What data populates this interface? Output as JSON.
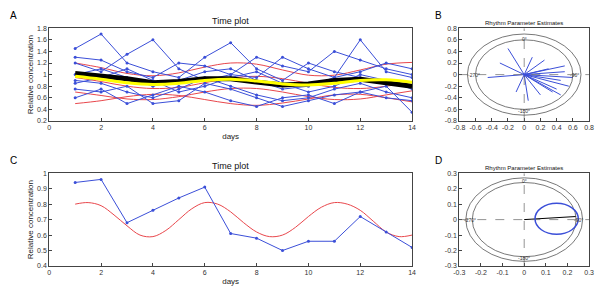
{
  "chart_data": [
    {
      "type": "line",
      "panel": "A",
      "title": "Time plot",
      "x_label": "days",
      "y_label": "Relative concentration",
      "xlim": [
        0,
        14
      ],
      "xticks": [
        0,
        2,
        4,
        6,
        8,
        10,
        12,
        14
      ],
      "ylim": [
        0.2,
        1.8
      ],
      "yticks": [
        0.2,
        0.4,
        0.6,
        0.8,
        1,
        1.2,
        1.4,
        1.6,
        1.8
      ],
      "grid": false,
      "x": [
        1,
        2,
        3,
        4,
        5,
        6,
        7,
        8,
        9,
        10,
        11,
        12,
        13,
        14
      ],
      "series": [
        {
          "color": "#e8474c",
          "line_style": "smooth",
          "values": [
            1.2,
            1.12,
            1.02,
            0.98,
            1.03,
            1.13,
            1.2,
            1.18,
            1.08,
            0.99,
            0.99,
            1.08,
            1.18,
            1.21
          ]
        },
        {
          "color": "#e8474c",
          "line_style": "smooth",
          "values": [
            0.7,
            0.64,
            0.58,
            0.57,
            0.62,
            0.7,
            0.76,
            0.76,
            0.7,
            0.62,
            0.57,
            0.58,
            0.65,
            0.72
          ]
        },
        {
          "color": "#e8474c",
          "line_style": "smooth",
          "values": [
            0.95,
            0.88,
            0.8,
            0.76,
            0.78,
            0.86,
            0.94,
            0.97,
            0.93,
            0.85,
            0.78,
            0.76,
            0.8,
            0.88
          ]
        },
        {
          "color": "#e8474c",
          "line_style": "smooth",
          "values": [
            0.5,
            0.55,
            0.62,
            0.66,
            0.64,
            0.57,
            0.5,
            0.47,
            0.51,
            0.58,
            0.65,
            0.66,
            0.6,
            0.53
          ]
        },
        {
          "color": "#3b4fd8",
          "marker": "dot",
          "values": [
            1.45,
            1.7,
            1.2,
            1.05,
            0.95,
            1.3,
            1.55,
            1.1,
            0.9,
            1.2,
            1.05,
            0.95,
            0.85,
            0.8
          ]
        },
        {
          "color": "#3b4fd8",
          "marker": "dot",
          "values": [
            0.6,
            0.75,
            0.5,
            0.65,
            0.8,
            0.7,
            0.55,
            0.45,
            0.6,
            0.65,
            0.5,
            0.7,
            0.6,
            0.55
          ]
        },
        {
          "color": "#3b4fd8",
          "marker": "dot",
          "values": [
            1.2,
            1.05,
            1.35,
            1.6,
            1.1,
            0.9,
            1.0,
            1.3,
            1.15,
            1.05,
            1.4,
            1.25,
            1.1,
            1.0
          ]
        },
        {
          "color": "#3b4fd8",
          "marker": "dot",
          "values": [
            0.9,
            0.85,
            0.7,
            0.6,
            0.75,
            0.95,
            0.8,
            0.65,
            0.55,
            0.6,
            0.75,
            0.85,
            0.7,
            0.6
          ]
        },
        {
          "color": "#3b4fd8",
          "marker": "dot",
          "values": [
            1.0,
            1.1,
            0.95,
            0.8,
            0.9,
            1.05,
            1.1,
            0.9,
            0.75,
            0.8,
            0.95,
            1.6,
            1.05,
            0.95
          ]
        },
        {
          "color": "#3b4fd8",
          "marker": "dot",
          "values": [
            0.75,
            0.7,
            0.8,
            0.5,
            0.55,
            0.85,
            0.75,
            0.6,
            0.45,
            0.55,
            0.65,
            0.7,
            0.8,
            0.35
          ]
        },
        {
          "color": "#3b4fd8",
          "marker": "dot",
          "values": [
            1.3,
            1.25,
            1.05,
            0.95,
            1.2,
            1.15,
            1.0,
            0.95,
            1.3,
            1.1,
            0.95,
            1.05,
            1.2,
            1.1
          ]
        },
        {
          "color": "#3b4fd8",
          "marker": "dot",
          "values": [
            0.85,
            0.95,
            1.1,
            0.9,
            0.7,
            0.8,
            0.95,
            1.05,
            0.85,
            0.7,
            0.8,
            1.0,
            0.9,
            0.75
          ]
        },
        {
          "color": "#000000",
          "line_style": "bold",
          "values": [
            1.02,
            0.98,
            0.93,
            0.86,
            0.88,
            0.93,
            0.93,
            0.87,
            0.82,
            0.84,
            0.9,
            0.92,
            0.87,
            0.8
          ]
        },
        {
          "color": "#ffff00",
          "line_style": "smooth",
          "values": [
            0.97,
            0.92,
            0.86,
            0.83,
            0.85,
            0.9,
            0.92,
            0.89,
            0.84,
            0.82,
            0.85,
            0.9,
            0.91,
            0.87
          ]
        }
      ]
    },
    {
      "type": "cosinor",
      "panel": "B",
      "title": "Rhythm Parameter Estimates",
      "xlim": [
        -0.8,
        0.8
      ],
      "xticks": [
        -0.8,
        -0.6,
        -0.4,
        -0.2,
        0,
        0.2,
        0.4,
        0.6,
        0.8
      ],
      "ylim": [
        -0.8,
        0.8
      ],
      "yticks": [
        -0.8,
        -0.6,
        -0.4,
        -0.2,
        0,
        0.2,
        0.4,
        0.6,
        0.8
      ],
      "grid": false,
      "origin": [
        0,
        0
      ],
      "rings": [
        0.6,
        0.7
      ],
      "color": "#3b4fd8",
      "vectors": [
        [
          0.5,
          0.05
        ],
        [
          0.45,
          -0.1
        ],
        [
          0.55,
          -0.2
        ],
        [
          0.4,
          -0.25
        ],
        [
          0.35,
          -0.3
        ],
        [
          0.5,
          0.15
        ],
        [
          0.3,
          0.1
        ],
        [
          0.6,
          -0.05
        ],
        [
          0.45,
          -0.35
        ],
        [
          0.2,
          -0.35
        ],
        [
          0.25,
          0.25
        ],
        [
          0.1,
          0.3
        ],
        [
          -0.3,
          0.2
        ],
        [
          -0.45,
          -0.05
        ],
        [
          -0.1,
          -0.3
        ],
        [
          0.05,
          -0.45
        ],
        [
          -0.2,
          0.45
        ]
      ],
      "angle_labels": [
        {
          "text": "0°",
          "x": 0,
          "y": 0.62
        },
        {
          "text": "-90°",
          "x": 0.62,
          "y": 0
        },
        {
          "text": "-180°",
          "x": 0,
          "y": -0.62
        },
        {
          "text": "-270°",
          "x": -0.62,
          "y": 0
        }
      ]
    },
    {
      "type": "line",
      "panel": "C",
      "title": "Time plot",
      "x_label": "days",
      "y_label": "Relative concentration",
      "xlim": [
        0,
        14
      ],
      "xticks": [
        0,
        2,
        4,
        6,
        8,
        10,
        12,
        14
      ],
      "ylim": [
        0.4,
        1
      ],
      "yticks": [
        0.4,
        0.5,
        0.6,
        0.7,
        0.8,
        0.9,
        1
      ],
      "grid": false,
      "x": [
        1,
        2,
        3,
        4,
        5,
        6,
        7,
        8,
        9,
        10,
        11,
        12,
        13,
        14
      ],
      "series": [
        {
          "color": "#e8474c",
          "line_style": "smooth",
          "x": [
            1,
            1.5,
            2,
            2.5,
            3,
            3.5,
            4,
            4.5,
            5,
            5.5,
            6,
            6.5,
            7,
            7.5,
            8,
            8.5,
            9,
            9.5,
            10,
            10.5,
            11,
            11.5,
            12,
            12.5,
            13,
            13.5,
            14
          ],
          "values": [
            0.8,
            0.81,
            0.79,
            0.73,
            0.66,
            0.6,
            0.59,
            0.63,
            0.7,
            0.77,
            0.81,
            0.8,
            0.75,
            0.68,
            0.62,
            0.59,
            0.6,
            0.65,
            0.72,
            0.78,
            0.81,
            0.8,
            0.76,
            0.69,
            0.62,
            0.59,
            0.6
          ]
        },
        {
          "color": "#3b4fd8",
          "marker": "dot",
          "values": [
            0.94,
            0.96,
            0.68,
            0.76,
            0.84,
            0.91,
            0.61,
            0.58,
            0.5,
            0.56,
            0.56,
            0.72,
            0.62,
            0.52
          ]
        }
      ]
    },
    {
      "type": "cosinor",
      "panel": "D",
      "title": "Rhythm Parameter Estimates",
      "xlim": [
        -0.3,
        0.3
      ],
      "xticks": [
        -0.3,
        -0.2,
        -0.1,
        0,
        0.1,
        0.2,
        0.3
      ],
      "ylim": [
        -0.3,
        0.3
      ],
      "yticks": [
        -0.3,
        -0.2,
        -0.1,
        0,
        0.1,
        0.2,
        0.3
      ],
      "grid": false,
      "origin": [
        0,
        0
      ],
      "rings": [
        0.24,
        0.27
      ],
      "color": "#000000",
      "ellipse": {
        "center": [
          0.15,
          0.005
        ],
        "rx": 0.1,
        "ry": 0.1,
        "color": "#3b4fd8"
      },
      "vectors": [
        [
          0.24,
          0.02
        ]
      ],
      "angle_labels": [
        {
          "text": "0°",
          "x": 0,
          "y": 0.25
        },
        {
          "text": "-90°",
          "x": 0.25,
          "y": 0
        },
        {
          "text": "-180°",
          "x": 0,
          "y": -0.25
        },
        {
          "text": "-270°",
          "x": -0.25,
          "y": 0
        }
      ]
    }
  ]
}
